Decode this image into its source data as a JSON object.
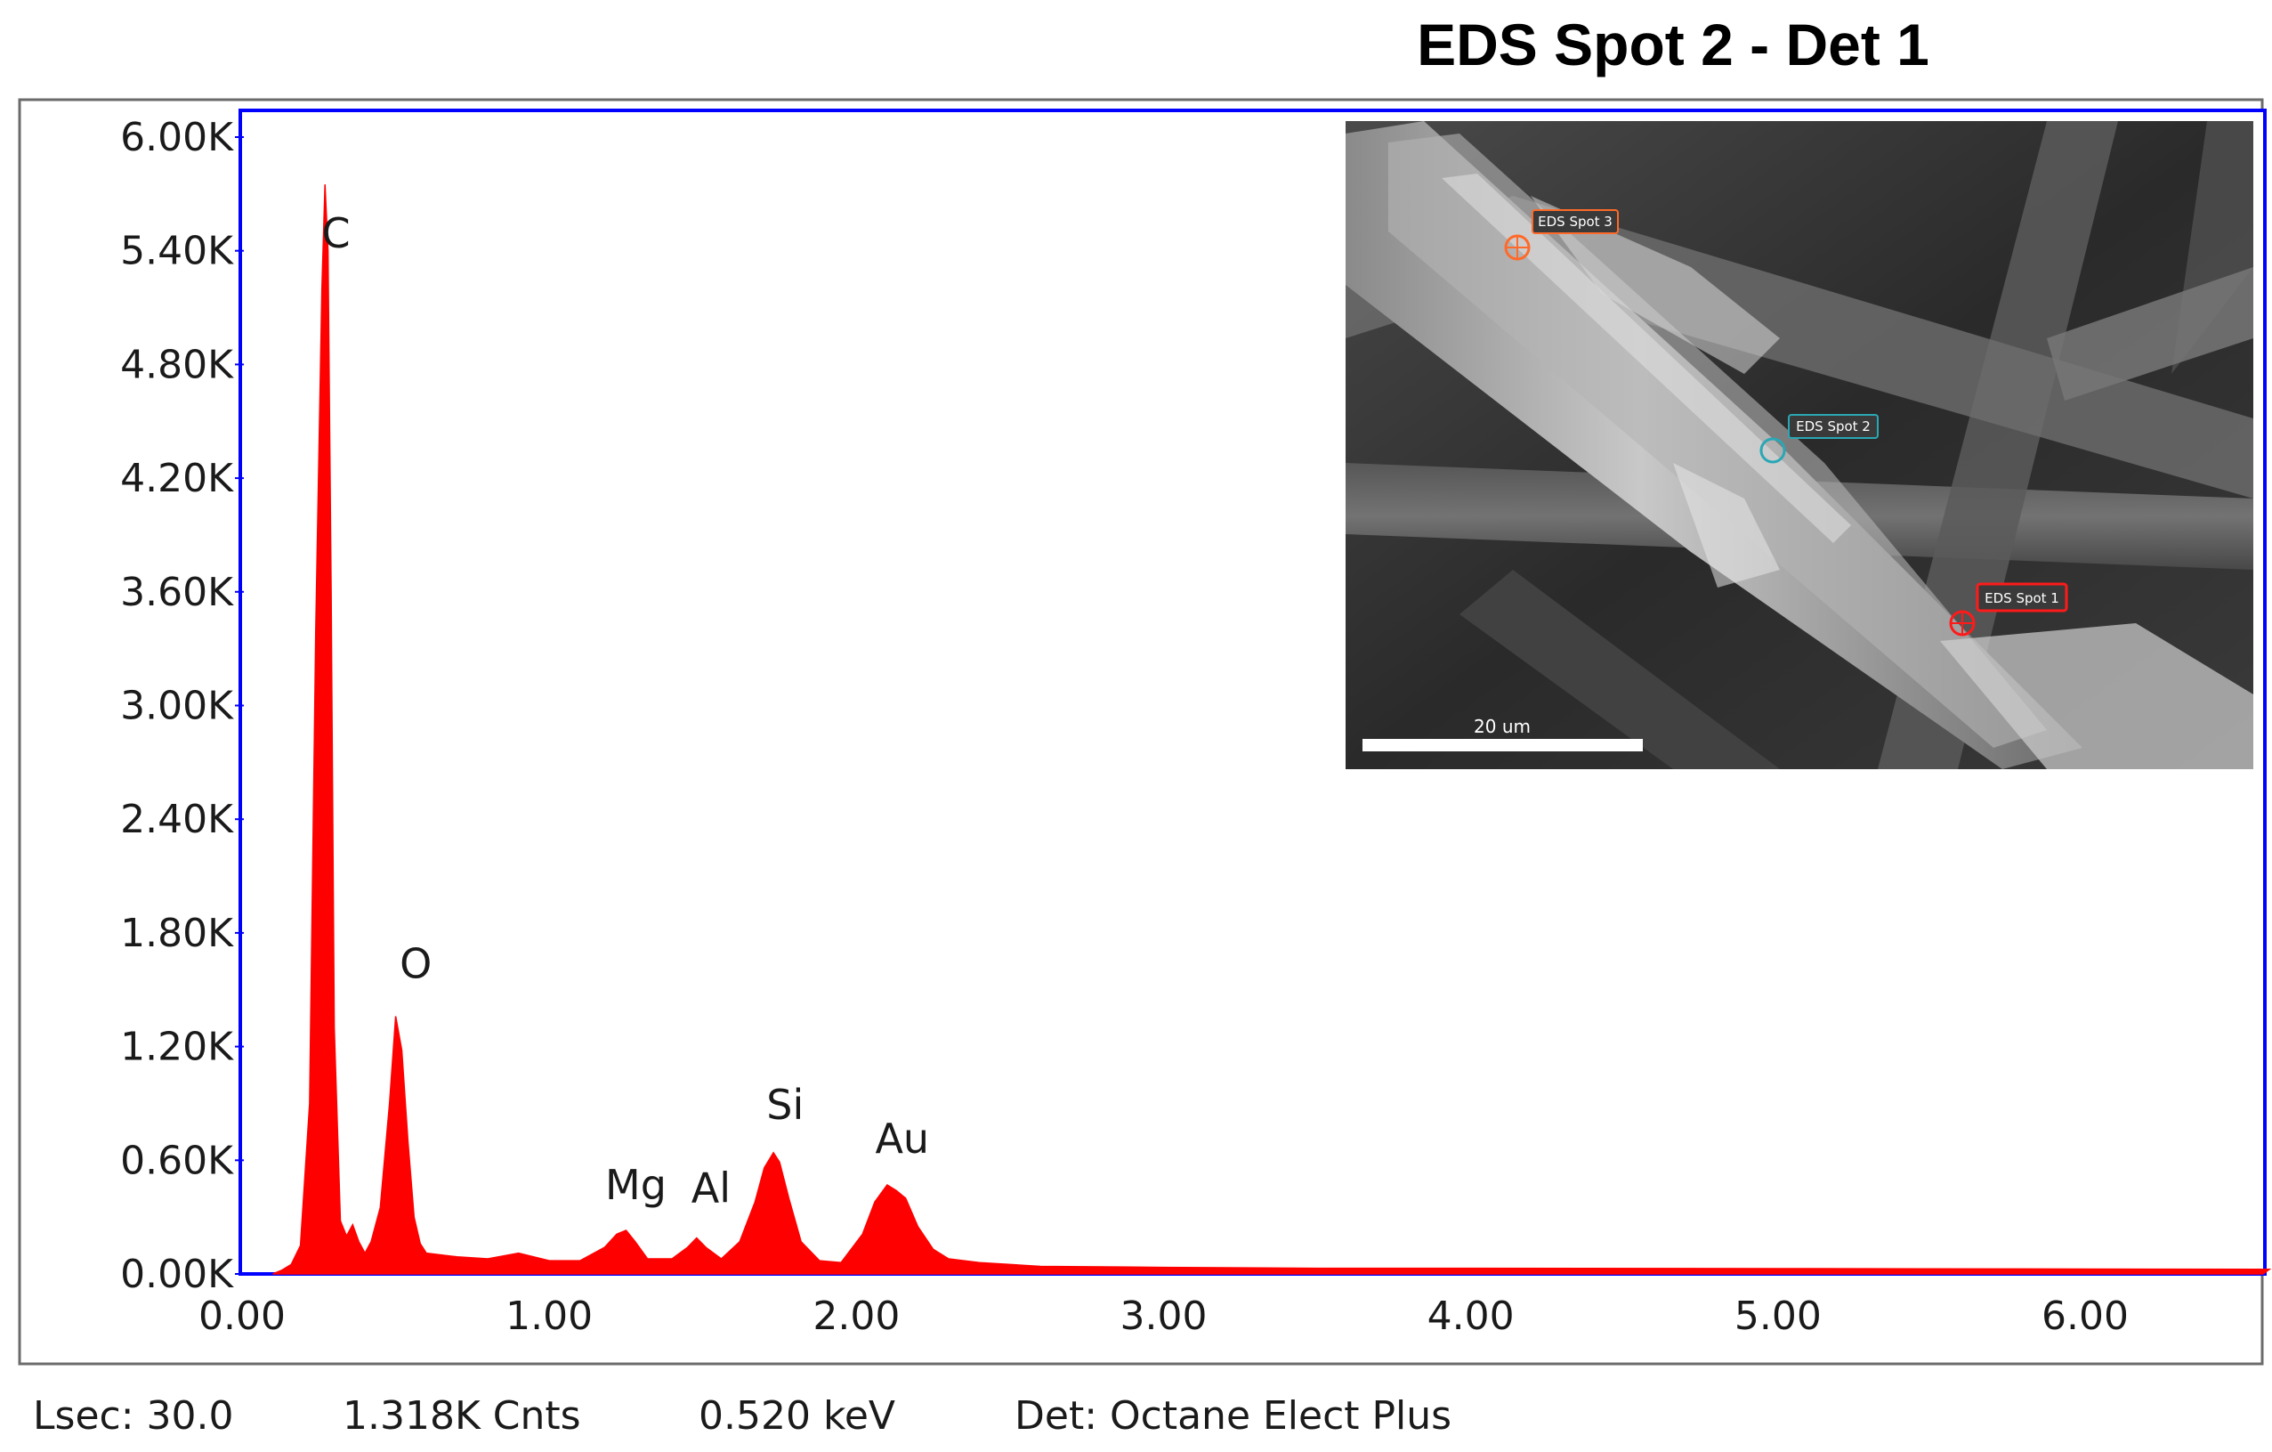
{
  "chart_data": {
    "type": "area",
    "title": "EDS Spot 2 - Det 1",
    "xlabel": "",
    "ylabel": "",
    "xlim": [
      0.0,
      6.6
    ],
    "ylim": [
      0,
      6000
    ],
    "x_ticks": [
      "0.00",
      "1.00",
      "2.00",
      "3.00",
      "4.00",
      "5.00",
      "6.00"
    ],
    "x_tick_values": [
      0,
      1,
      2,
      3,
      4,
      5,
      6
    ],
    "y_ticks": [
      "0.00K",
      "0.60K",
      "1.20K",
      "1.80K",
      "2.40K",
      "3.00K",
      "3.60K",
      "4.20K",
      "4.80K",
      "5.40K",
      "6.00K"
    ],
    "y_tick_values": [
      0,
      600,
      1200,
      1800,
      2400,
      3000,
      3600,
      4200,
      4800,
      5400,
      6000
    ],
    "series_color": "#ff0000",
    "plot_border_color": "#0000ff",
    "peaks": [
      {
        "label": "C",
        "energy": 0.277,
        "counts": 5700
      },
      {
        "label": "O",
        "energy": 0.525,
        "counts": 1350
      },
      {
        "label": "Mg",
        "energy": 1.253,
        "counts": 230
      },
      {
        "label": "Al",
        "energy": 1.486,
        "counts": 190
      },
      {
        "label": "Si",
        "energy": 1.739,
        "counts": 630
      },
      {
        "label": "Au",
        "energy": 2.12,
        "counts": 450
      }
    ],
    "spectrum": {
      "x": [
        0.1,
        0.13,
        0.16,
        0.19,
        0.22,
        0.24,
        0.26,
        0.27,
        0.28,
        0.29,
        0.3,
        0.32,
        0.34,
        0.36,
        0.38,
        0.4,
        0.42,
        0.45,
        0.48,
        0.5,
        0.52,
        0.54,
        0.56,
        0.58,
        0.6,
        0.65,
        0.7,
        0.8,
        0.9,
        0.95,
        1.0,
        1.1,
        1.18,
        1.22,
        1.25,
        1.28,
        1.32,
        1.4,
        1.45,
        1.48,
        1.51,
        1.56,
        1.62,
        1.67,
        1.7,
        1.73,
        1.75,
        1.78,
        1.82,
        1.88,
        1.95,
        2.02,
        2.06,
        2.1,
        2.13,
        2.16,
        2.2,
        2.25,
        2.3,
        2.4,
        2.6,
        3.0,
        3.5,
        4.0,
        5.0,
        6.0,
        6.6
      ],
      "y": [
        0,
        20,
        50,
        150,
        900,
        3400,
        5200,
        5750,
        5400,
        3600,
        1300,
        280,
        200,
        260,
        170,
        110,
        170,
        350,
        900,
        1360,
        1180,
        700,
        300,
        160,
        110,
        100,
        90,
        80,
        110,
        90,
        70,
        70,
        140,
        210,
        230,
        170,
        80,
        80,
        140,
        190,
        140,
        80,
        170,
        380,
        560,
        640,
        590,
        400,
        170,
        70,
        60,
        210,
        380,
        470,
        440,
        400,
        250,
        130,
        80,
        60,
        40,
        35,
        30,
        30,
        28,
        26,
        25
      ]
    }
  },
  "inset_image": {
    "spot_labels": [
      {
        "text": "EDS Spot 3",
        "color": "#ff6a2a"
      },
      {
        "text": "EDS Spot 2",
        "color": "#2aa7b5"
      },
      {
        "text": "EDS Spot 1",
        "color": "#ff1a1a"
      }
    ],
    "scale_bar_label": "20 um"
  },
  "status_bar": {
    "lsec": "Lsec: 30.0",
    "counts": "1.318K Cnts",
    "energy": "0.520 keV",
    "detector": "Det: Octane Elect Plus"
  }
}
